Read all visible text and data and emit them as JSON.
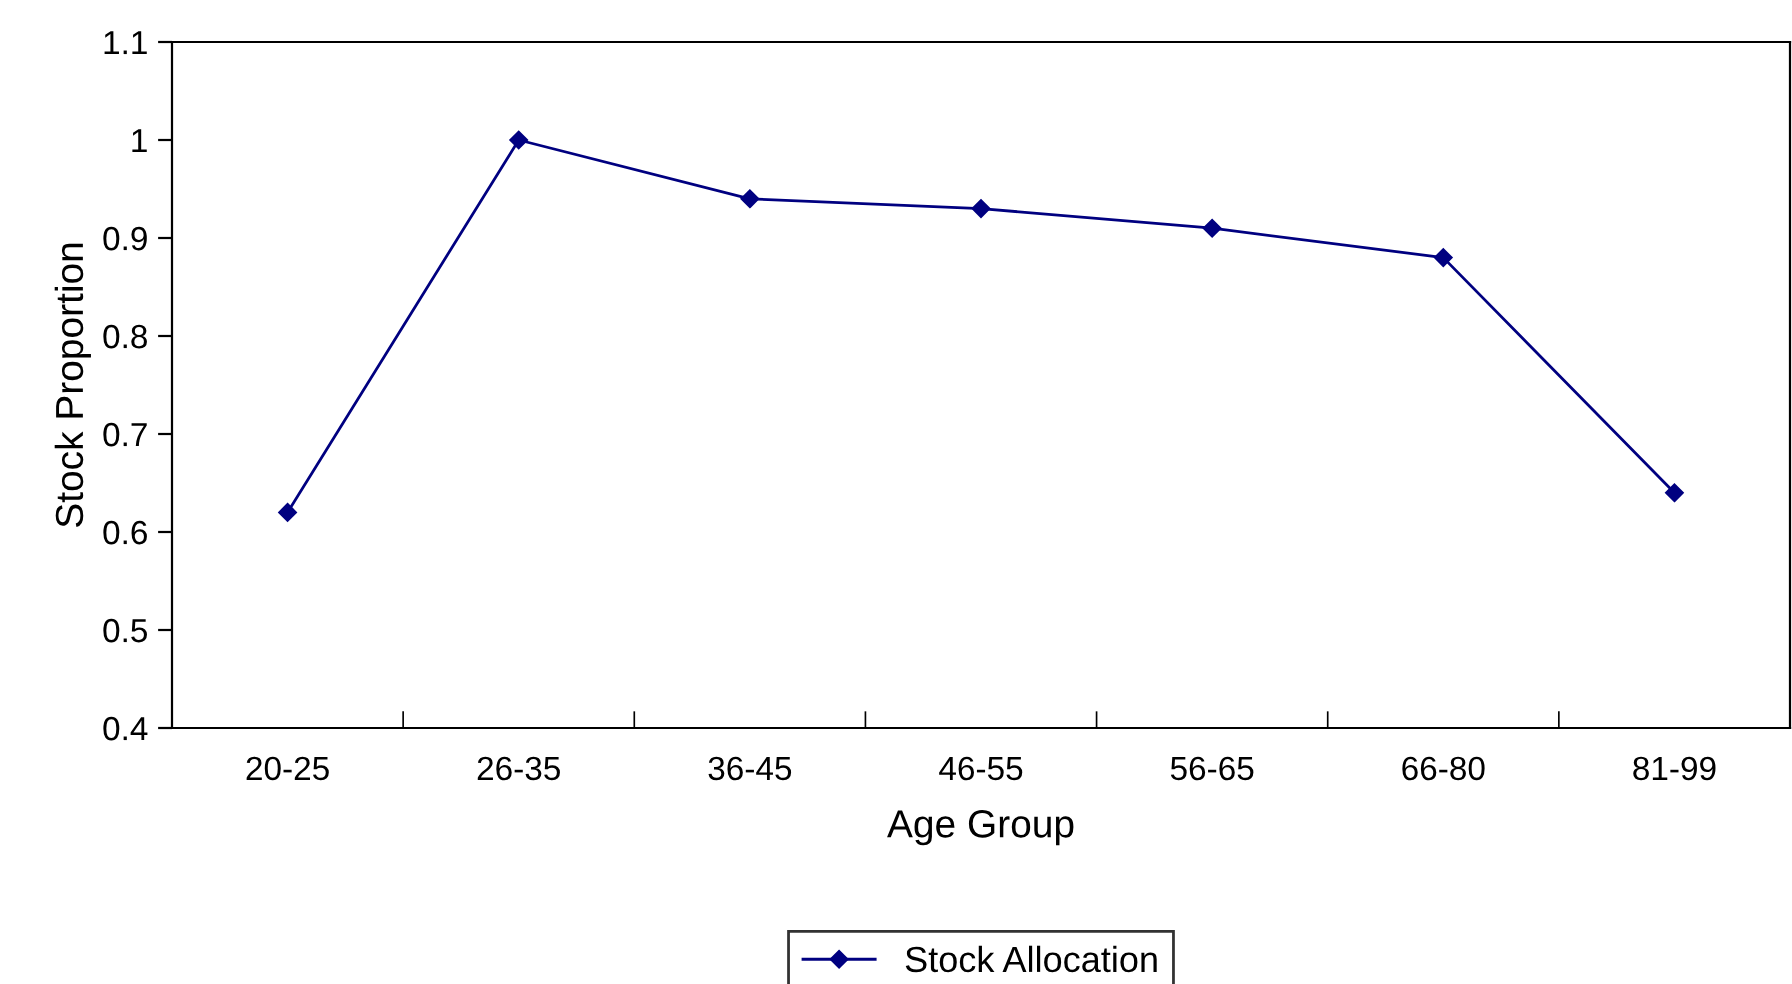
{
  "chart_data": {
    "type": "line",
    "xlabel": "Age Group",
    "ylabel": "Stock Proportion",
    "categories": [
      "20-25",
      "26-35",
      "36-45",
      "46-55",
      "56-65",
      "66-80",
      "81-99"
    ],
    "series": [
      {
        "name": "Stock Allocation",
        "color": "#000080",
        "values": [
          0.62,
          1.0,
          0.94,
          0.93,
          0.91,
          0.88,
          0.64
        ]
      }
    ],
    "ylim": [
      0.4,
      1.1
    ],
    "yticks": [
      0.4,
      0.5,
      0.6,
      0.7,
      0.8,
      0.9,
      1,
      1.1
    ],
    "grid": false,
    "legend": "bottom",
    "marker": "diamond",
    "line_style": "solid"
  }
}
